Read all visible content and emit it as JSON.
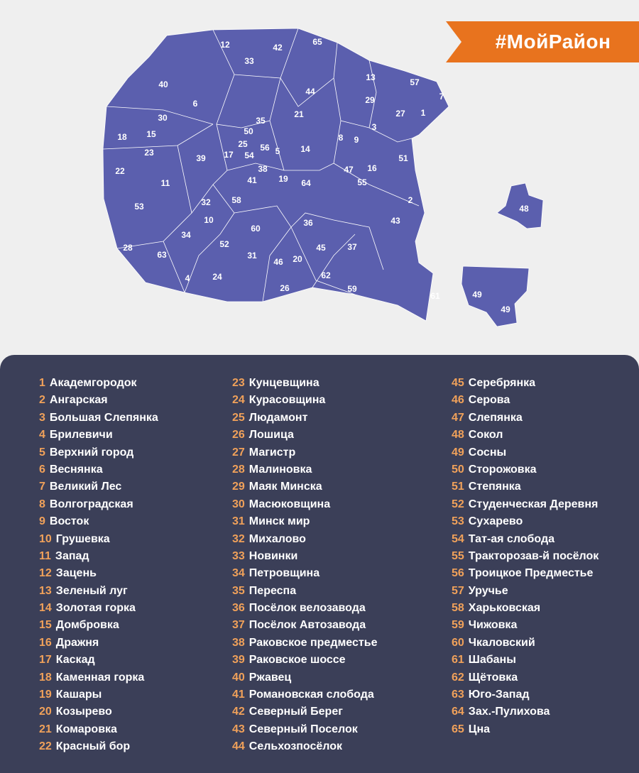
{
  "banner": {
    "text": "#МойРайон",
    "color": "#e8731e"
  },
  "colors": {
    "map_fill": "#5b5fae",
    "map_border": "#ffffff",
    "panel": "#3b3f58",
    "number": "#f0a15a",
    "page": "#efefef"
  },
  "districts": [
    {
      "num": "1",
      "name": "Академгородок"
    },
    {
      "num": "2",
      "name": "Ангарская"
    },
    {
      "num": "3",
      "name": "Большая Слепянка"
    },
    {
      "num": "4",
      "name": "Брилевичи"
    },
    {
      "num": "5",
      "name": "Верхний город"
    },
    {
      "num": "6",
      "name": "Веснянка"
    },
    {
      "num": "7",
      "name": "Великий Лес"
    },
    {
      "num": "8",
      "name": "Волгоградская"
    },
    {
      "num": "9",
      "name": "Восток"
    },
    {
      "num": "10",
      "name": "Грушевка"
    },
    {
      "num": "11",
      "name": "Запад"
    },
    {
      "num": "12",
      "name": "Зацень"
    },
    {
      "num": "13",
      "name": "Зеленый луг"
    },
    {
      "num": "14",
      "name": "Золотая горка"
    },
    {
      "num": "15",
      "name": "Домбровка"
    },
    {
      "num": "16",
      "name": "Дражня"
    },
    {
      "num": "17",
      "name": "Каскад"
    },
    {
      "num": "18",
      "name": "Каменная горка"
    },
    {
      "num": "19",
      "name": "Кашары"
    },
    {
      "num": "20",
      "name": "Козырево"
    },
    {
      "num": "21",
      "name": "Комаровка"
    },
    {
      "num": "22",
      "name": "Красный бор"
    },
    {
      "num": "23",
      "name": "Кунцевщина"
    },
    {
      "num": "24",
      "name": "Курасовщина"
    },
    {
      "num": "25",
      "name": "Людамонт"
    },
    {
      "num": "26",
      "name": "Лошица"
    },
    {
      "num": "27",
      "name": "Магистр"
    },
    {
      "num": "28",
      "name": "Малиновка"
    },
    {
      "num": "29",
      "name": "Маяк Минска"
    },
    {
      "num": "30",
      "name": "Масюковщина"
    },
    {
      "num": "31",
      "name": "Минск мир"
    },
    {
      "num": "32",
      "name": "Михалово"
    },
    {
      "num": "33",
      "name": "Новинки"
    },
    {
      "num": "34",
      "name": "Петровщина"
    },
    {
      "num": "35",
      "name": "Переспа"
    },
    {
      "num": "36",
      "name": "Посёлок велозавода"
    },
    {
      "num": "37",
      "name": "Посёлок Автозавода"
    },
    {
      "num": "38",
      "name": "Раковское предместье"
    },
    {
      "num": "39",
      "name": "Раковское шоссе"
    },
    {
      "num": "40",
      "name": "Ржавец"
    },
    {
      "num": "41",
      "name": "Романовская слобода"
    },
    {
      "num": "42",
      "name": "Северный Берег"
    },
    {
      "num": "43",
      "name": "Северный Поселок"
    },
    {
      "num": "44",
      "name": "Сельхозпосёлок"
    },
    {
      "num": "45",
      "name": "Серебрянка"
    },
    {
      "num": "46",
      "name": "Серова"
    },
    {
      "num": "47",
      "name": "Слепянка"
    },
    {
      "num": "48",
      "name": "Сокол"
    },
    {
      "num": "49",
      "name": "Сосны"
    },
    {
      "num": "50",
      "name": "Сторожовка"
    },
    {
      "num": "51",
      "name": "Степянка"
    },
    {
      "num": "52",
      "name": "Студенческая Деревня"
    },
    {
      "num": "53",
      "name": "Сухарево"
    },
    {
      "num": "54",
      "name": "Тат-ая слобода"
    },
    {
      "num": "55",
      "name": "Тракторозав-й посёлок"
    },
    {
      "num": "56",
      "name": "Троицкое Предместье"
    },
    {
      "num": "57",
      "name": "Уручье"
    },
    {
      "num": "58",
      "name": "Харьковская"
    },
    {
      "num": "59",
      "name": "Чижовка"
    },
    {
      "num": "60",
      "name": "Чкаловский"
    },
    {
      "num": "61",
      "name": "Шабаны"
    },
    {
      "num": "62",
      "name": "Щётовка"
    },
    {
      "num": "63",
      "name": "Юго-Запад"
    },
    {
      "num": "64",
      "name": "Зах.-Пулихова"
    },
    {
      "num": "65",
      "name": "Цна"
    }
  ]
}
